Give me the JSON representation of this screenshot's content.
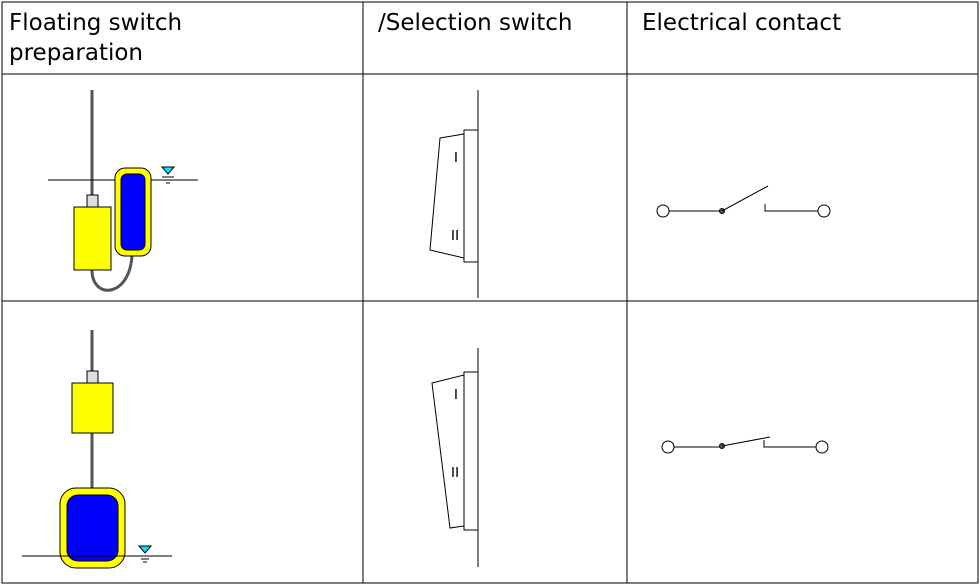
{
  "table": {
    "header": [
      "Floating switch preparation",
      "/Selection switch",
      "Electrical contact"
    ],
    "rows": [
      {
        "switch_labels": [
          "I",
          "II"
        ]
      },
      {
        "switch_labels": [
          "I",
          "II"
        ]
      }
    ]
  }
}
